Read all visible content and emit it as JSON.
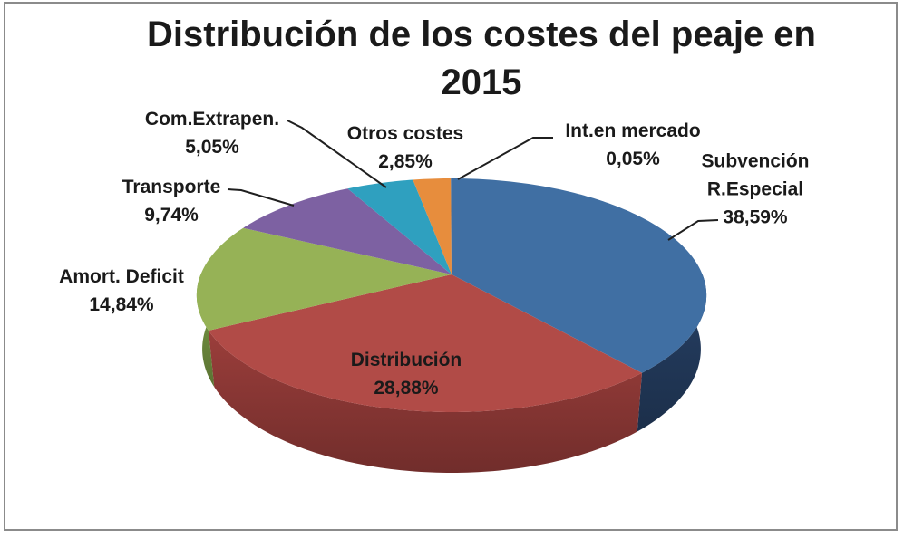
{
  "chart_data": {
    "type": "pie",
    "style": "3d-perspective",
    "title": "Distribución de los costes del peaje en 2015",
    "start_angle_deg": 0,
    "direction": "clockwise",
    "slices": [
      {
        "name": "Subvención R.Especial",
        "pct": 38.59,
        "pct_label": "38,59%",
        "color": "#406FA3",
        "side_color": "#22395A"
      },
      {
        "name": "Distribución",
        "pct": 28.88,
        "pct_label": "28,88%",
        "color": "#B14B47",
        "side_color": "#8A3735"
      },
      {
        "name": "Amort. Deficit",
        "pct": 14.84,
        "pct_label": "14,84%",
        "color": "#96B256",
        "side_color": "#6F8C3E"
      },
      {
        "name": "Transporte",
        "pct": 9.74,
        "pct_label": "9,74%",
        "color": "#7D61A2",
        "side_color": "#5D487C"
      },
      {
        "name": "Com.Extrapen.",
        "pct": 5.05,
        "pct_label": "5,05%",
        "color": "#2FA0BF",
        "side_color": "#23778E"
      },
      {
        "name": "Otros costes",
        "pct": 2.85,
        "pct_label": "2,85%",
        "color": "#E78D3D",
        "side_color": "#B56A27"
      },
      {
        "name": "Int.en mercado",
        "pct": 0.05,
        "pct_label": "0,05%",
        "color": "#406FA3",
        "side_color": "#22395A"
      }
    ]
  }
}
